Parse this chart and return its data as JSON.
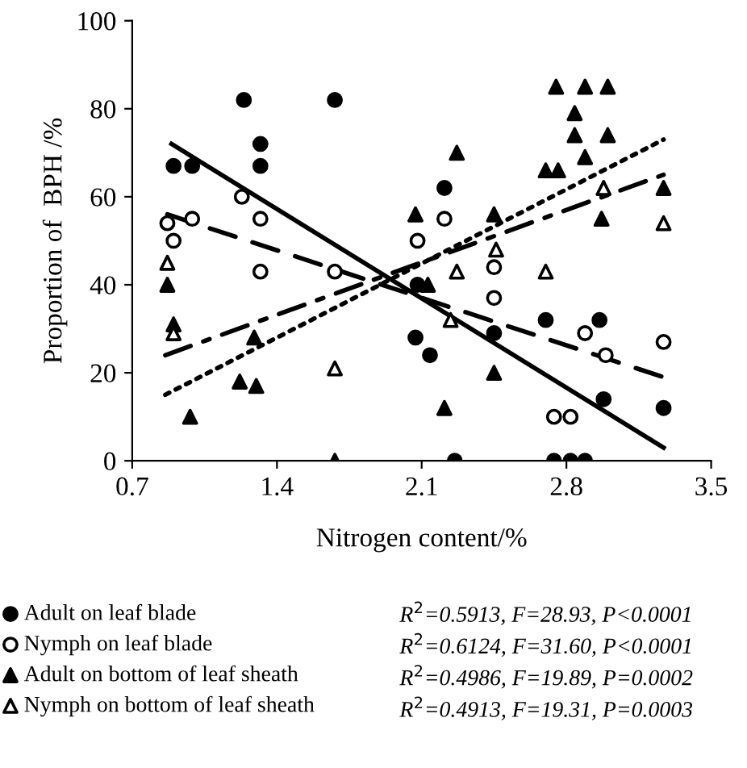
{
  "chart_data": {
    "type": "scatter",
    "xlabel": "Nitrogen content/%",
    "ylabel": "Proportion of  BPH /%",
    "xlim": [
      0.7,
      3.5
    ],
    "xticks": [
      0.7,
      1.4,
      2.1,
      2.8,
      3.5
    ],
    "ylim": [
      0,
      100
    ],
    "yticks": [
      0,
      20,
      40,
      60,
      80,
      100
    ],
    "grid": false,
    "legend": "bottom",
    "series": [
      {
        "name": "Adult on leaf blade",
        "color": "#000000",
        "marker": "circle",
        "x": [
          0.9,
          0.99,
          1.24,
          1.32,
          1.32,
          1.68,
          2.08,
          2.21,
          2.07,
          2.14,
          2.7,
          2.96,
          2.45,
          2.98,
          3.27,
          2.26,
          2.74,
          2.82,
          2.89
        ],
        "values": [
          67,
          67,
          82,
          72,
          67,
          82,
          40,
          62,
          28,
          24,
          32,
          32,
          29,
          14,
          12,
          0,
          0,
          0,
          0
        ]
      },
      {
        "name": "Nymph on leaf blade",
        "color": "#ffffff",
        "marker": "circle",
        "x": [
          0.87,
          0.9,
          0.99,
          1.23,
          1.32,
          1.32,
          1.68,
          2.21,
          2.45,
          2.45,
          2.89,
          2.99,
          3.27,
          2.74,
          2.82,
          2.08
        ],
        "values": [
          54,
          50,
          55,
          60,
          55,
          43,
          43,
          55,
          44,
          37,
          29,
          24,
          27,
          10,
          10,
          50
        ]
      },
      {
        "name": "Adult on bottom of leaf sheath",
        "color": "#000000",
        "marker": "triangle",
        "x": [
          0.87,
          0.9,
          1.29,
          1.22,
          1.3,
          0.98,
          1.68,
          2.07,
          2.75,
          2.89,
          3.0,
          2.84,
          2.84,
          3.0,
          2.89,
          2.7,
          2.76,
          2.27,
          3.27,
          2.97,
          2.45,
          2.21,
          2.45,
          2.13
        ],
        "values": [
          40,
          31,
          28,
          18,
          17,
          10,
          0,
          56,
          85,
          85,
          85,
          79,
          74,
          74,
          69,
          66,
          66,
          70,
          62,
          55,
          56,
          12,
          20,
          40
        ]
      },
      {
        "name": "Nymph on bottom of leaf sheath",
        "color": "#ffffff",
        "marker": "triangle",
        "x": [
          0.87,
          0.9,
          1.68,
          2.27,
          2.7,
          2.46,
          2.98,
          3.27,
          2.24
        ],
        "values": [
          45,
          29,
          21,
          43,
          43,
          48,
          62,
          54,
          32
        ]
      },
      {
        "type": "line",
        "color": "#000000",
        "line_style": "solid",
        "marker": "none",
        "x": [
          0.89,
          3.27
        ],
        "values": [
          72,
          3
        ]
      },
      {
        "type": "line",
        "color": "#000000",
        "line_style": "dashed",
        "marker": "none",
        "x": [
          0.87,
          3.27
        ],
        "values": [
          56,
          19
        ]
      },
      {
        "type": "line",
        "color": "#000000",
        "line_style": "dotted",
        "marker": "none",
        "x": [
          0.86,
          3.27
        ],
        "values": [
          15,
          73
        ]
      },
      {
        "type": "line",
        "color": "#000000",
        "line_style": "dashdot",
        "marker": "none",
        "x": [
          0.86,
          3.27
        ],
        "values": [
          24,
          65
        ]
      }
    ],
    "annotations": [
      "R$^{2}$=0.5913, F=28.93, P<0.0001",
      "R$^{2}$=0.6124, F=31.60, P<0.0001",
      "R$^{2}$=0.4986, F=19.89, P=0.0002",
      "R$^{2}$=0.4913, F=19.31, P=0.0003"
    ]
  }
}
